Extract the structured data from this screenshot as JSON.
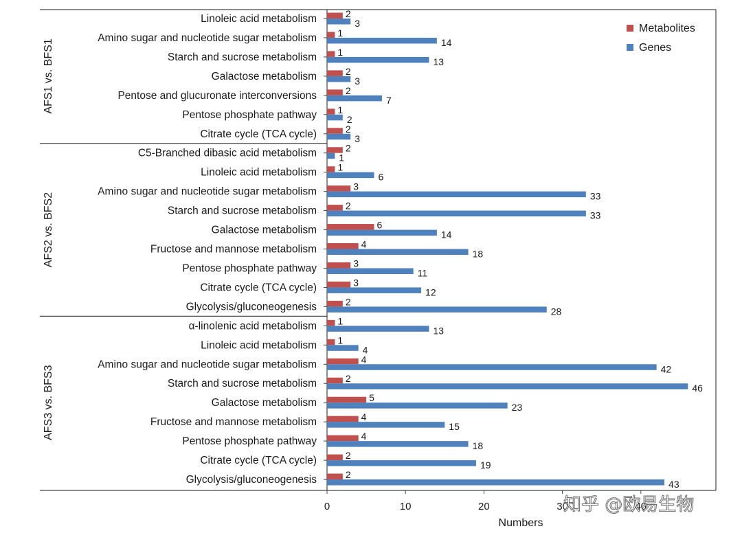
{
  "chart_data": {
    "type": "bar",
    "orientation": "horizontal",
    "xlabel": "Numbers",
    "xlim": [
      0,
      50
    ],
    "xticks": [
      0,
      10,
      20,
      30,
      40
    ],
    "legend": {
      "position": "top-right",
      "entries": [
        "Metabolites",
        "Genes"
      ]
    },
    "series_colors": {
      "Metabolites": "#c0504d",
      "Genes": "#4f81bd"
    },
    "groups": [
      {
        "label": "AFS1 vs. BFS1",
        "categories": [
          "Linoleic acid metabolism",
          "Amino sugar and nucleotide sugar metabolism",
          "Starch and sucrose metabolism",
          "Galactose metabolism",
          "Pentose and glucuronate interconversions",
          "Pentose phosphate pathway",
          "Citrate cycle (TCA cycle)"
        ],
        "metabolites": [
          2,
          1,
          1,
          2,
          2,
          1,
          2
        ],
        "genes": [
          3,
          14,
          13,
          3,
          7,
          2,
          3
        ]
      },
      {
        "label": "AFS2 vs. BFS2",
        "categories": [
          "C5-Branched dibasic acid metabolism",
          "Linoleic acid metabolism",
          "Amino sugar and nucleotide sugar metabolism",
          "Starch and sucrose metabolism",
          "Galactose metabolism",
          "Fructose and mannose metabolism",
          "Pentose phosphate pathway",
          "Citrate cycle (TCA cycle)",
          "Glycolysis/gluconeogenesis"
        ],
        "metabolites": [
          2,
          1,
          3,
          2,
          6,
          4,
          3,
          3,
          2
        ],
        "genes": [
          1,
          6,
          33,
          33,
          14,
          18,
          11,
          12,
          28
        ]
      },
      {
        "label": "AFS3 vs. BFS3",
        "categories": [
          "α-linolenic acid metabolism",
          "Linoleic acid metabolism",
          "Amino sugar and nucleotide sugar metabolism",
          "Starch and sucrose metabolism",
          "Galactose metabolism",
          "Fructose and mannose metabolism",
          "Pentose phosphate pathway",
          "Citrate cycle (TCA cycle)",
          "Glycolysis/gluconeogenesis"
        ],
        "metabolites": [
          1,
          1,
          4,
          2,
          5,
          4,
          4,
          2,
          2
        ],
        "genes": [
          13,
          4,
          42,
          46,
          23,
          15,
          18,
          19,
          43
        ]
      }
    ]
  },
  "watermark": "知乎 @欧易生物"
}
